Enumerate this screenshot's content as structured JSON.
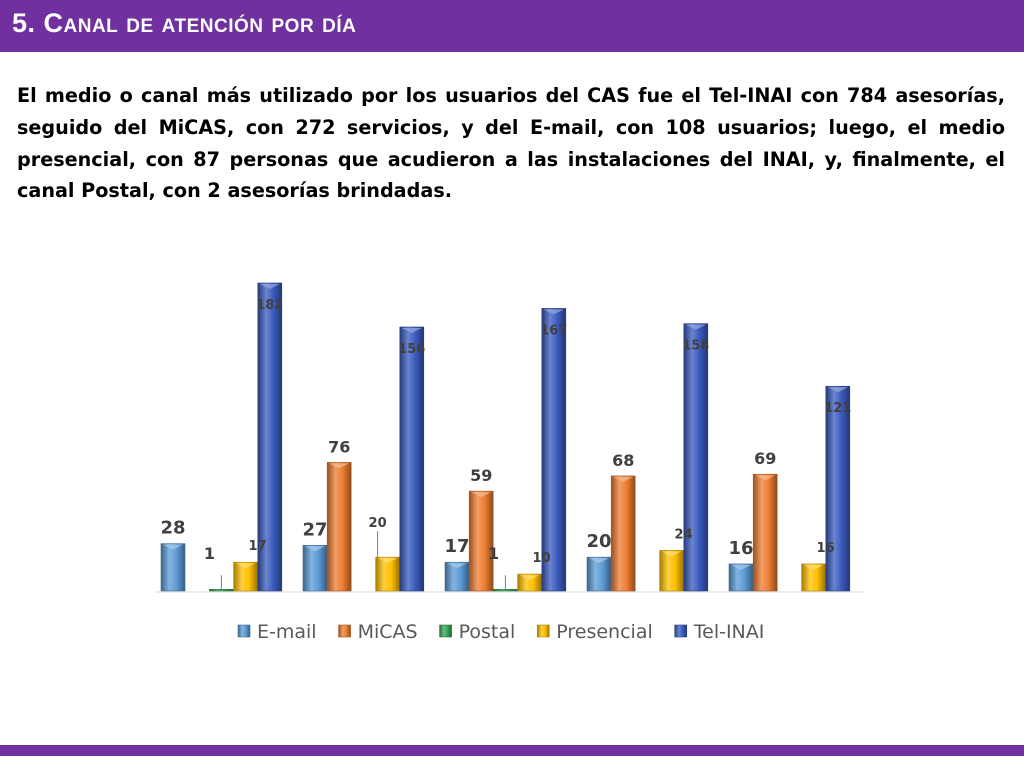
{
  "slide": {
    "title": "5. Canal de atención por día",
    "summary": "El medio o canal más utilizado por los usuarios del CAS fue el Tel-INAI con 784 asesorías, seguido del MiCAS, con 272 servicios, y del E-mail, con 108 usuarios; luego, el medio presencial, con 87 personas que acudieron a las instalaciones del INAI, y, finalmente, el canal Postal, con 2 asesorías brindadas."
  },
  "colors": {
    "title_bar": "#7030a0",
    "E-mail": "#5b9bd5",
    "MiCAS": "#ed7d31",
    "Postal": "#3aa655",
    "Presencial": "#ffc000",
    "Tel-INAI": "#3a5bbf"
  },
  "chart_data": {
    "type": "bar",
    "title": "",
    "xlabel": "",
    "ylabel": "",
    "categories": [
      "",
      "",
      "",
      "",
      ""
    ],
    "ylim": [
      0,
      190
    ],
    "legend_position": "bottom",
    "grid": false,
    "series": [
      {
        "name": "E-mail",
        "values": [
          28,
          27,
          17,
          20,
          16
        ]
      },
      {
        "name": "MiCAS",
        "values": [
          null,
          76,
          59,
          68,
          69
        ]
      },
      {
        "name": "Postal",
        "values": [
          1,
          null,
          1,
          null,
          null
        ]
      },
      {
        "name": "Presencial",
        "values": [
          17,
          20,
          10,
          24,
          16
        ]
      },
      {
        "name": "Tel-INAI",
        "values": [
          182,
          156,
          167,
          158,
          121
        ]
      }
    ]
  }
}
